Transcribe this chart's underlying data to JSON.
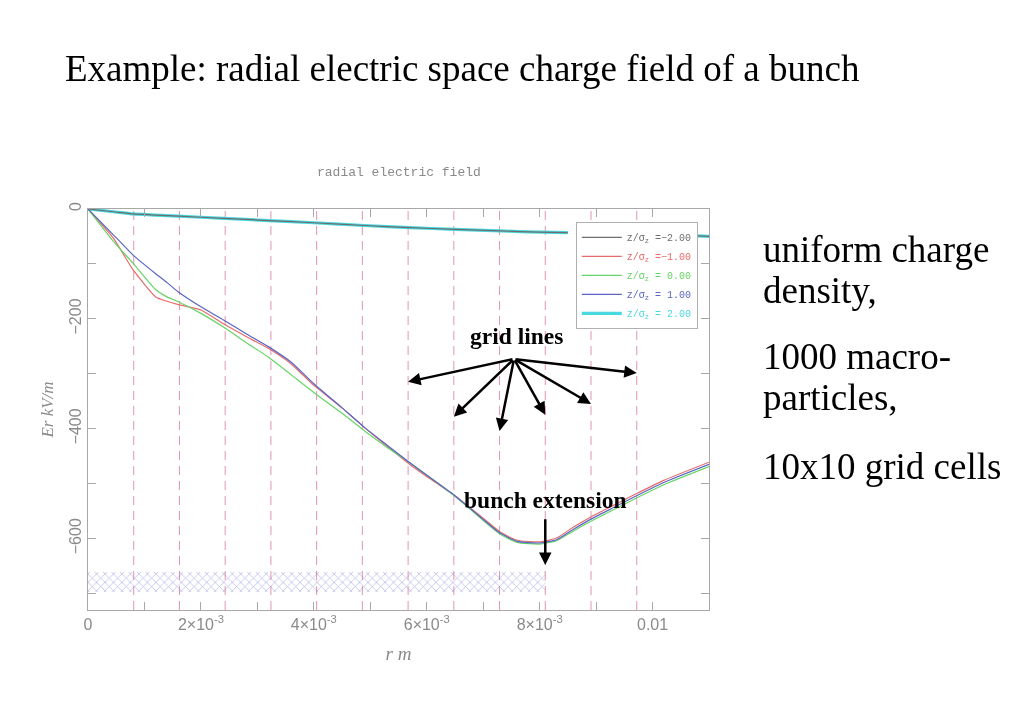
{
  "chart_data": {
    "type": "line",
    "title": "Example: radial electric space charge field of a bunch",
    "subtitle": "radial electric field",
    "xlabel": "r m",
    "ylabel": "Er kV/m",
    "annotations": [
      {
        "text": "grid lines",
        "x": 0.00729,
        "y": -404
      },
      "uniform charge density,",
      "1000 macro-particles,",
      "10x10 grid cells"
    ],
    "x": [
      0,
      0.00045,
      0.0008,
      0.0012,
      0.0014,
      0.0016,
      0.002,
      0.0024,
      0.0028,
      0.0032,
      0.0036,
      0.004,
      0.0045,
      0.0049,
      0.0053,
      0.0057,
      0.0061,
      0.0065,
      0.007,
      0.0073,
      0.0076,
      0.008,
      0.0083,
      0.0086,
      0.0089,
      0.0093,
      0.0097,
      0.0102,
      0.011
    ],
    "series": [
      {
        "name": "z/σ$_{z}$ =−2.00",
        "color": "#6e6e6e",
        "x": [
          0,
          0.00045,
          0.0008,
          0.0012,
          0.0016,
          0.0024,
          0.0032,
          0.004,
          0.0049,
          0.0057,
          0.0065,
          0.0073,
          0.008,
          0.0085,
          0.0089,
          0.0102,
          0.0108,
          0.011
        ],
        "values": [
          0,
          -5,
          -9,
          -11,
          -13,
          -17,
          -21,
          -25,
          -30,
          -34,
          -37,
          -40,
          -42,
          -43,
          null,
          null,
          -49,
          -50
        ]
      },
      {
        "name": "z/σ$_{z}$ =−1.00",
        "color": "#e86a6a",
        "values": [
          0,
          -53,
          -111,
          -160,
          -168,
          -174,
          -184,
          -209,
          -232,
          -254,
          -282,
          -321,
          -362,
          -398,
          -432,
          -465,
          -494,
          -522,
          -563,
          -588,
          -603,
          -606,
          -599,
          -579,
          -561,
          -540,
          -519,
          -494,
          -461
        ]
      },
      {
        "name": "z/σ$_{z}$ = 0.00",
        "color": "#66d466",
        "values": [
          0,
          -59,
          -99,
          -147,
          -160,
          -169,
          -190,
          -215,
          -243,
          -270,
          -302,
          -334,
          -372,
          -404,
          -434,
          -462,
          -492,
          -523,
          -567,
          -592,
          -607,
          -610,
          -604,
          -586,
          -569,
          -548,
          -527,
          -502,
          -469
        ]
      },
      {
        "name": "z/σ$_{z}$ = 1.00",
        "color": "#5a66c4",
        "values": [
          0,
          -47,
          -84,
          -118,
          -134,
          -151,
          -178,
          -202,
          -227,
          -251,
          -279,
          -318,
          -362,
          -398,
          -430,
          -462,
          -492,
          -522,
          -565,
          -590,
          -605,
          -608,
          -602,
          -583,
          -565,
          -544,
          -523,
          -498,
          -465
        ]
      },
      {
        "name": "z/σ$_{z}$ = 2.00",
        "color": "#4ad8e0",
        "x": [
          0,
          0.00045,
          0.0008,
          0.0012,
          0.0016,
          0.0024,
          0.0032,
          0.004,
          0.0049,
          0.0057,
          0.0065,
          0.0073,
          0.008,
          0.0085,
          0.0089,
          0.0102,
          0.0108,
          0.011
        ],
        "values": [
          0,
          -5,
          -9,
          -11,
          -13,
          -17,
          -21,
          -25,
          -30,
          -34,
          -37,
          -40,
          -42,
          -43,
          null,
          null,
          -49,
          -50
        ]
      }
    ],
    "xlim": [
      0,
      0.011
    ],
    "xticks": [
      0,
      {
        "value": 0.001,
        "label": null
      },
      {
        "value": 0.002,
        "label": "2×10$^{-3}$"
      },
      {
        "value": 0.003,
        "label": null
      },
      {
        "value": 0.004,
        "label": "4×10$^{-3}$"
      },
      {
        "value": 0.005,
        "label": null
      },
      {
        "value": 0.006,
        "label": "6×10$^{-3}$"
      },
      {
        "value": 0.007,
        "label": null
      },
      {
        "value": 0.008,
        "label": "8×10$^{-3}$"
      },
      {
        "value": 0.009,
        "label": null
      },
      0.01
    ],
    "ylim": [
      -730,
      0
    ],
    "yticks": [
      0,
      {
        "value": -100,
        "label": null
      },
      {
        "value": -200,
        "label": "−200"
      },
      {
        "value": -300,
        "label": null
      },
      {
        "value": -400,
        "label": "−400"
      },
      {
        "value": -500,
        "label": null
      },
      {
        "value": -600,
        "label": "−600"
      },
      {
        "value": -700,
        "label": null
      }
    ],
    "ref_lines": [
      {
        "axis": "x",
        "value": 0.00081,
        "color": "#e394b0",
        "line_style": "dashed"
      },
      {
        "axis": "x",
        "value": 0.00162,
        "color": "#e394b0",
        "line_style": "dashed"
      },
      {
        "axis": "x",
        "value": 0.00243,
        "color": "#e394b0",
        "line_style": "dashed"
      },
      {
        "axis": "x",
        "value": 0.00324,
        "color": "#e394b0",
        "line_style": "dashed"
      },
      {
        "axis": "x",
        "value": 0.00405,
        "color": "#e394b0",
        "line_style": "dashed"
      },
      {
        "axis": "x",
        "value": 0.00486,
        "color": "#e394b0",
        "line_style": "dashed"
      },
      {
        "axis": "x",
        "value": 0.00567,
        "color": "#e394b0",
        "line_style": "dashed"
      },
      {
        "axis": "x",
        "value": 0.00648,
        "color": "#e394b0",
        "line_style": "dashed"
      },
      {
        "axis": "x",
        "value": 0.00729,
        "color": "#e394b0",
        "line_style": "dashed"
      },
      {
        "axis": "x",
        "value": 0.0081,
        "color": "#e394b0",
        "line_style": "dashed"
      },
      {
        "axis": "x",
        "value": 0.00891,
        "color": "#e394b0",
        "line_style": "dashed"
      },
      {
        "axis": "x",
        "value": 0.00972,
        "color": "#e394b0",
        "line_style": "dashed"
      }
    ],
    "bands": [
      {
        "axis": "x",
        "from": 0,
        "to": 0.0081,
        "label": "bunch extension",
        "color": "#6a6ad2"
      }
    ],
    "legend": "top right"
  }
}
